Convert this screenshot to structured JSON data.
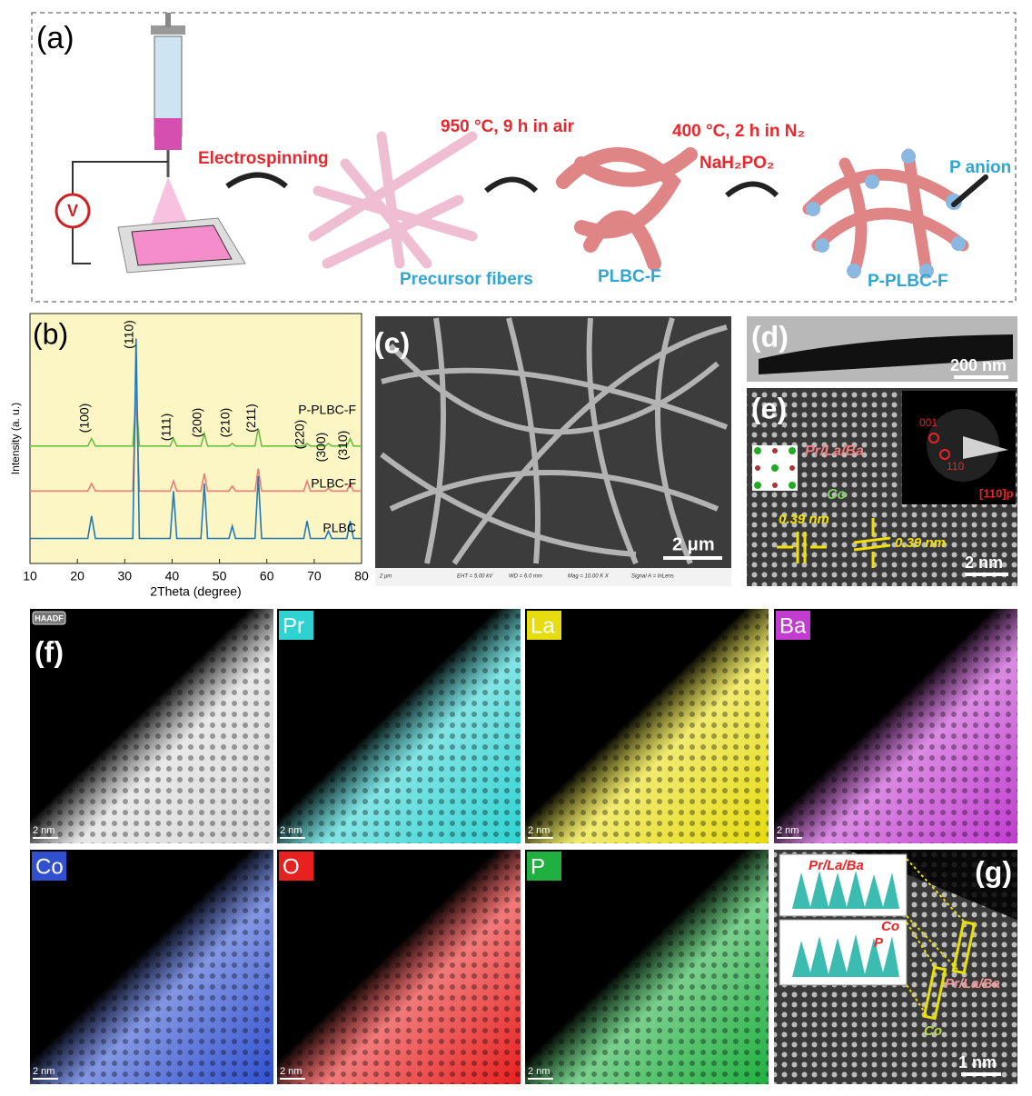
{
  "panel_a": {
    "label": "(a)",
    "voltage": "V",
    "steps": {
      "electrospinning": "Electrospinning",
      "calcination": "950 °C, 9 h in air",
      "phosphidation": "400 °C, 2 h in N₂",
      "reagent": "NaH₂PO₂"
    },
    "products": [
      "Precursor fibers",
      "PLBC-F",
      "P-PLBC-F"
    ],
    "annotation": "P anion"
  },
  "chart_data": {
    "type": "line",
    "panel_label": "(b)",
    "xlabel": "2Theta (degree)",
    "ylabel": "Intensity (a. u.)",
    "background": "#fbf6c4",
    "x": [
      10,
      22.2,
      23,
      23.8,
      31.7,
      32.4,
      33.1,
      39.6,
      40.3,
      41,
      46.1,
      46.8,
      47.5,
      52,
      52.7,
      53.4,
      57.5,
      58.2,
      58.9,
      67.8,
      68.5,
      69.2,
      72.3,
      73,
      73.7,
      76.9,
      77.6,
      78.3,
      80
    ],
    "series": [
      {
        "name": "P-PLBC-F",
        "color": "#6cbf45",
        "values": [
          47,
          47,
          50,
          47,
          47,
          67,
          47,
          47,
          50,
          47,
          47,
          52,
          47,
          47,
          48,
          47,
          47,
          54,
          47,
          47,
          48,
          47,
          47,
          48,
          47,
          47,
          50,
          47,
          47
        ]
      },
      {
        "name": "PLBC-F",
        "color": "#ef7a78",
        "values": [
          29,
          29,
          32,
          29,
          29,
          69,
          29,
          29,
          33,
          29,
          29,
          36,
          29,
          29,
          31,
          29,
          29,
          38,
          29,
          29,
          33,
          29,
          29,
          30,
          29,
          29,
          32,
          29,
          29
        ]
      },
      {
        "name": "PLBC",
        "color": "#2379b8",
        "values": [
          10,
          10,
          19,
          10,
          10,
          90,
          10,
          10,
          29,
          10,
          10,
          32,
          10,
          10,
          15,
          10,
          10,
          35,
          10,
          10,
          17,
          10,
          10,
          13,
          10,
          10,
          17,
          10,
          10
        ]
      }
    ],
    "xlim": [
      10,
      80
    ],
    "xticks": [
      10,
      20,
      30,
      40,
      50,
      60,
      70,
      80
    ],
    "ylim": [
      0,
      100
    ],
    "peak_labels": [
      {
        "label": "(100)",
        "x": 23
      },
      {
        "label": "(110)",
        "x": 32.4
      },
      {
        "label": "(111)",
        "x": 40.3
      },
      {
        "label": "(200)",
        "x": 46.8
      },
      {
        "label": "(210)",
        "x": 52.7
      },
      {
        "label": "(211)",
        "x": 58.2
      },
      {
        "label": "(220)",
        "x": 68.5
      },
      {
        "label": "(300)",
        "x": 73
      },
      {
        "label": "(310)",
        "x": 77.6
      }
    ]
  },
  "panel_c": {
    "label": "(c)",
    "scale_bar": "2 μm",
    "footer": [
      "2 μm",
      "EHT = 5.00 kV",
      "WD = 6.0 mm",
      "Mag = 10.00 K X",
      "Signal A = InLens"
    ]
  },
  "panel_d": {
    "label": "(d)",
    "scale_bar": "200 nm"
  },
  "panel_e": {
    "label": "(e)",
    "sites": [
      "Pr/La/Ba",
      "Co"
    ],
    "spacings": [
      "0.39 nm",
      "0.39 nm"
    ],
    "saed_spots": [
      "001",
      "110"
    ],
    "zone_axis": "[110]p",
    "scale_bar": "2 nm"
  },
  "panel_f": {
    "label": "(f)",
    "scale_bar": "2 nm",
    "maps": [
      {
        "element": "HAADF",
        "color": "#d8d8d8"
      },
      {
        "element": "Pr",
        "color": "#2fd2d2"
      },
      {
        "element": "La",
        "color": "#e6dc10"
      },
      {
        "element": "Ba",
        "color": "#c23cd0"
      },
      {
        "element": "Co",
        "color": "#3050d0"
      },
      {
        "element": "O",
        "color": "#e82020"
      },
      {
        "element": "P",
        "color": "#20b040"
      }
    ]
  },
  "panel_g": {
    "label": "(g)",
    "profile_labels": [
      "Pr/La/Ba",
      "Co",
      "P"
    ],
    "sites": [
      "Pr/La/Ba",
      "Co"
    ],
    "scale_bar": "1 nm"
  }
}
